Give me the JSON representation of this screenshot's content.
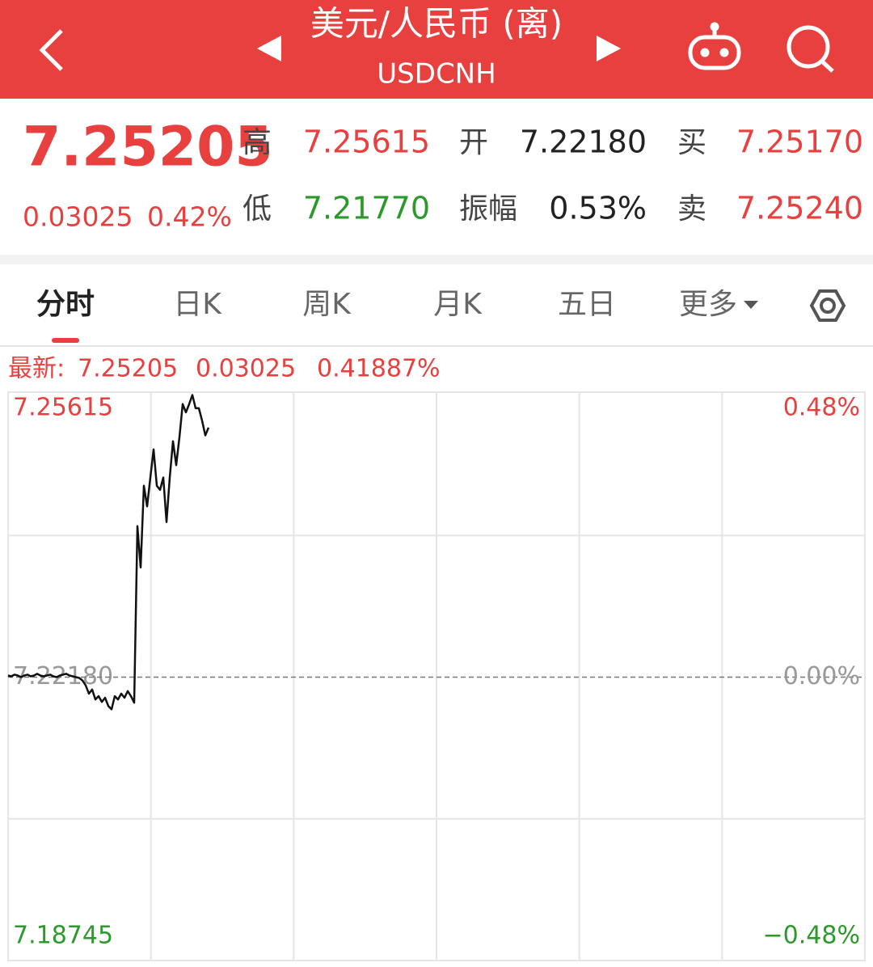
{
  "header": {
    "title": "美元/人民币 (离)",
    "subtitle": "USDCNH"
  },
  "quote": {
    "price": "7.25205",
    "change": "0.03025",
    "change_pct": "0.42%",
    "stats": [
      {
        "label": "高",
        "value": "7.25615",
        "color": "#e8403f"
      },
      {
        "label": "开",
        "value": "7.22180",
        "color": "#222222"
      },
      {
        "label": "买",
        "value": "7.25170",
        "color": "#e8403f"
      },
      {
        "label": "低",
        "value": "7.21770",
        "color": "#2b9a2b"
      },
      {
        "label": "振幅",
        "value": "0.53%",
        "color": "#222222"
      },
      {
        "label": "卖",
        "value": "7.25240",
        "color": "#e8403f"
      }
    ]
  },
  "tabs": [
    "分时",
    "日K",
    "周K",
    "月K",
    "五日",
    "更多"
  ],
  "latest": {
    "label": "最新:",
    "price": "7.25205",
    "change": "0.03025",
    "change_pct": "0.41887%"
  },
  "chart_data": {
    "type": "line",
    "color": "#111111",
    "values": [
      7.222,
      7.2219,
      7.2221,
      7.222,
      7.2218,
      7.222,
      7.2221,
      7.2219,
      7.222,
      7.2222,
      7.222,
      7.2219,
      7.222,
      7.2221,
      7.2219,
      7.2218,
      7.222,
      7.2221,
      7.2222,
      7.222,
      7.2219,
      7.2218,
      7.2217,
      7.2214,
      7.2208,
      7.2198,
      7.2203,
      7.2191,
      7.2195,
      7.2188,
      7.2193,
      7.2183,
      7.2179,
      7.2195,
      7.2191,
      7.2198,
      7.2193,
      7.2201,
      7.2195,
      7.2187,
      7.2401,
      7.2351,
      7.245,
      7.2425,
      7.246,
      7.2494,
      7.245,
      7.2445,
      7.246,
      7.2406,
      7.246,
      7.2504,
      7.2475,
      7.2509,
      7.2549,
      7.2539,
      7.2549,
      7.256,
      7.2544,
      7.2544,
      7.2529,
      7.2511,
      7.25205
    ],
    "ylim": [
      7.18745,
      7.25615
    ],
    "yticks": [
      7.18745,
      {
        "value": 7.2218,
        "label": "7.22180"
      },
      7.25615
    ],
    "y2lim": [
      -0.48,
      0.48
    ],
    "y2ticks": [
      {
        "value": -0.48,
        "label": "−0.48%"
      },
      {
        "value": 0,
        "label": "0.00%"
      },
      {
        "value": 0.48,
        "label": "0.48%"
      }
    ],
    "tick_colors": [
      "#2b9a2b",
      "#999999",
      "#e8403f"
    ],
    "grid": true
  }
}
